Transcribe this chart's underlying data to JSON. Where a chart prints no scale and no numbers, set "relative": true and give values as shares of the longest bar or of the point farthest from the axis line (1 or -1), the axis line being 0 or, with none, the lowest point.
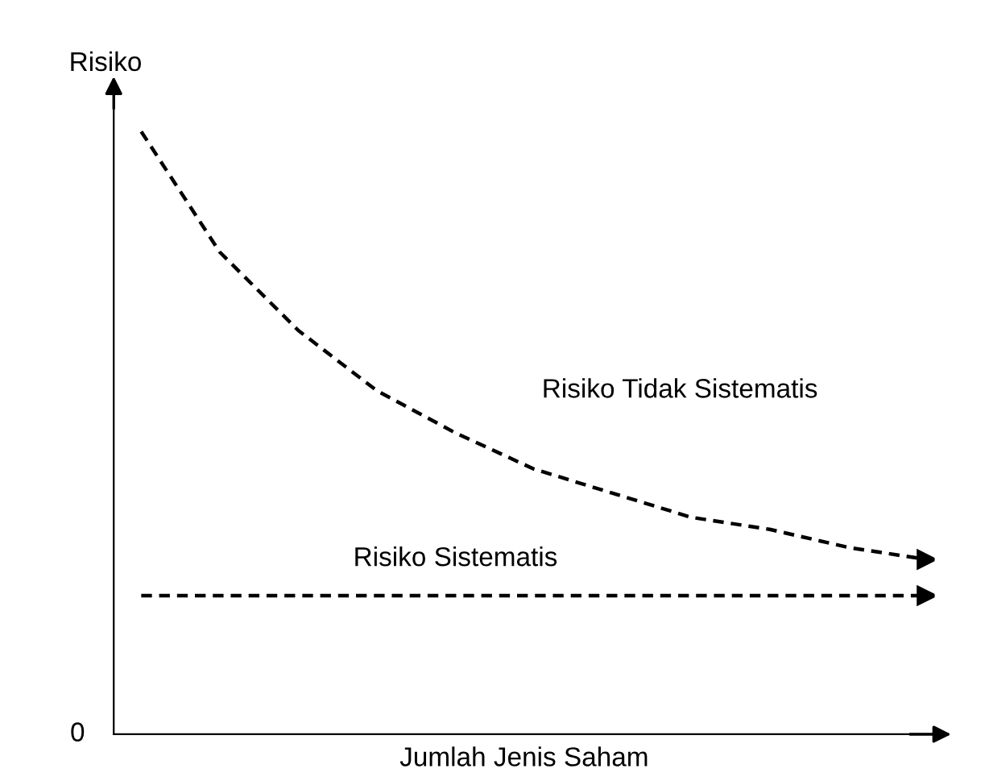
{
  "chart_data": {
    "type": "line",
    "relative": true,
    "ylabel": "Risiko",
    "xlabel": "Jumlah Jenis Saham",
    "categories": [
      null,
      null,
      null,
      null,
      null,
      null,
      null,
      null,
      null,
      null,
      null
    ],
    "series": [
      {
        "name": "Risiko Tidak Sistematis",
        "color": "#000000",
        "values": [
          1,
          0.8,
          0.67,
          0.57,
          0.5,
          0.44,
          0.4,
          0.36,
          0.34,
          0.31,
          0.29
        ]
      },
      {
        "name": "Risiko Sistematis",
        "color": "#000000",
        "values": [
          0.23,
          0.23,
          0.23,
          0.23,
          0.23,
          0.23,
          0.23,
          0.23,
          0.23,
          0.23,
          0.23
        ]
      }
    ],
    "annotations": [
      "0"
    ],
    "line_style": "dashed",
    "marker": "none",
    "grid": false,
    "legend": false
  }
}
